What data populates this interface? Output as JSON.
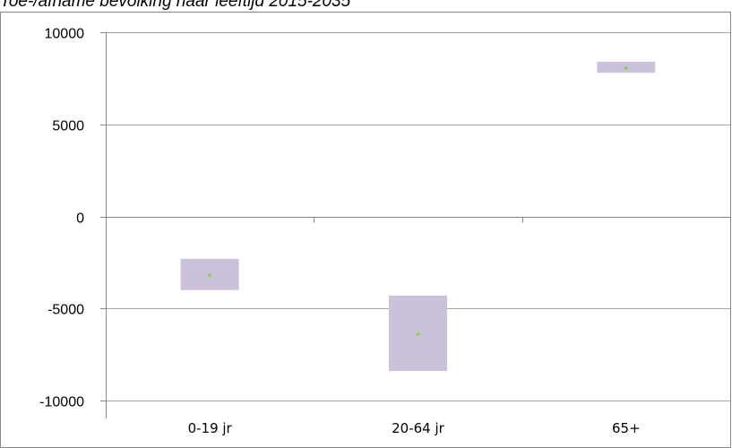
{
  "chart_data": {
    "type": "bar",
    "title": "Toe-/afname bevolking naar leeftijd 2015-2035",
    "categories": [
      "0-19 jr",
      "20-64 jr",
      "65+"
    ],
    "series": [
      {
        "low": [
          -4000,
          -8400,
          7800
        ],
        "high": [
          -2300,
          -4300,
          8400
        ],
        "mid": [
          -3200,
          -6400,
          8050
        ]
      }
    ],
    "yticks": [
      10000,
      5000,
      0,
      -5000,
      -10000
    ],
    "ylim": [
      -10000,
      10000
    ],
    "grid": true,
    "colors": {
      "box": "#ccc1da",
      "mid": "#92d050",
      "grid": "#a6a6a6",
      "axis": "#868686"
    }
  }
}
